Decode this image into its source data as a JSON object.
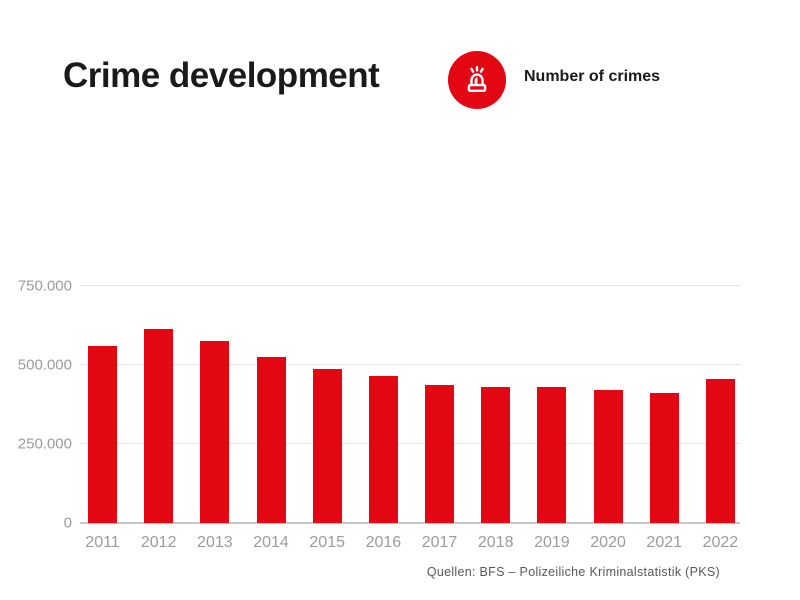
{
  "header": {
    "title": "Crime development",
    "legend_label": "Number of crimes",
    "icon": "siren-icon"
  },
  "footer": {
    "source": "Quellen: BFS – Polizeiliche Kriminalstatistik (PKS)"
  },
  "colors": {
    "bar_red": "#e30613",
    "badge_red": "#e30613",
    "grid_line": "#e4e4e4",
    "axis_line": "#c6c6c6",
    "tick_label": "#9b9b9b",
    "source_text": "#58585a",
    "title_text": "#1a1a1a"
  },
  "chart_data": {
    "type": "bar",
    "title": "Crime development",
    "series_label": "Number of crimes",
    "categories": [
      "2011",
      "2012",
      "2013",
      "2014",
      "2015",
      "2016",
      "2017",
      "2018",
      "2019",
      "2020",
      "2021",
      "2022"
    ],
    "values": [
      560000,
      615000,
      575000,
      526000,
      487000,
      465000,
      438000,
      432000,
      431000,
      420000,
      413000,
      457000
    ],
    "xlabel": "",
    "ylabel": "",
    "ylim": [
      0,
      750000
    ],
    "yticks": [
      0,
      250000,
      500000,
      750000
    ],
    "ytick_labels": [
      "0",
      "250.000",
      "500.000",
      "750.000"
    ],
    "grid": true,
    "legend_position": "top-right-of-title",
    "bar_color": "#e30613"
  }
}
